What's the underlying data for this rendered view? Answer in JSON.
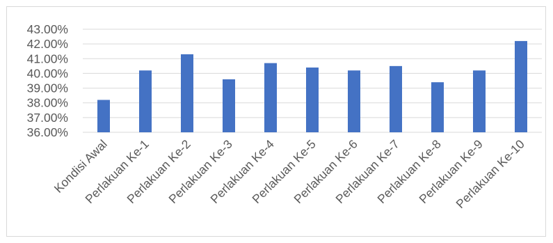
{
  "chart_data": {
    "type": "bar",
    "title": "",
    "xlabel": "",
    "ylabel": "",
    "categories": [
      "Kondisi Awal",
      "Perlakuan Ke-1",
      "Perlakuan Ke-2",
      "Perlakuan Ke-3",
      "Perlakuan Ke-4",
      "Perlakuan Ke-5",
      "Perlakuan Ke-6",
      "Perlakuan Ke-7",
      "Perlakuan Ke-8",
      "Perlakuan Ke-9",
      "Perlakuan Ke-10"
    ],
    "values": [
      38.2,
      40.2,
      41.3,
      39.6,
      40.7,
      40.4,
      40.2,
      40.5,
      39.4,
      40.2,
      42.2
    ],
    "ylim": [
      36,
      43
    ],
    "yticks": [
      36,
      37,
      38,
      39,
      40,
      41,
      42,
      43
    ],
    "ytick_labels": [
      "36.00%",
      "37.00%",
      "38.00%",
      "39.00%",
      "40.00%",
      "41.00%",
      "42.00%",
      "43.00%"
    ],
    "grid": true,
    "legend": "none",
    "bar_color": "#4472c4",
    "grid_color": "#d9d9d9"
  }
}
